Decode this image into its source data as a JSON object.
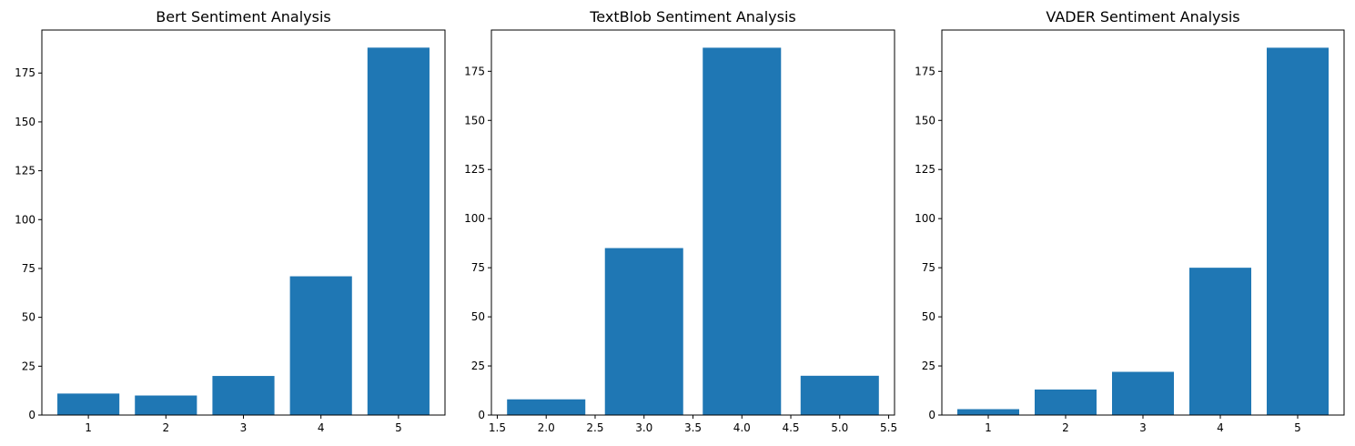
{
  "colors": {
    "bar": "#1f77b4",
    "axes": "#000000",
    "background": "#ffffff"
  },
  "chart_data": [
    {
      "type": "bar",
      "title": "Bert Sentiment Analysis",
      "xlabel": "",
      "ylabel": "",
      "x": [
        1,
        2,
        3,
        4,
        5
      ],
      "values": [
        11,
        10,
        20,
        71,
        188
      ],
      "bar_width": 0.8,
      "xlim": [
        0.4,
        5.6
      ],
      "ylim": [
        0,
        197
      ],
      "xticks": [
        1,
        2,
        3,
        4,
        5
      ],
      "xtick_labels": [
        "1",
        "2",
        "3",
        "4",
        "5"
      ],
      "yticks": [
        0,
        25,
        50,
        75,
        100,
        125,
        150,
        175
      ],
      "ytick_labels": [
        "0",
        "25",
        "50",
        "75",
        "100",
        "125",
        "150",
        "175"
      ],
      "grid": false,
      "legend": "none"
    },
    {
      "type": "bar",
      "title": "TextBlob Sentiment Analysis",
      "xlabel": "",
      "ylabel": "",
      "x": [
        2.0,
        3.0,
        4.0,
        5.0
      ],
      "values": [
        8,
        85,
        187,
        20
      ],
      "bar_width": 0.8,
      "xlim": [
        1.44,
        5.56
      ],
      "ylim": [
        0,
        196
      ],
      "xticks": [
        1.5,
        2.0,
        2.5,
        3.0,
        3.5,
        4.0,
        4.5,
        5.0,
        5.5
      ],
      "xtick_labels": [
        "1.5",
        "2.0",
        "2.5",
        "3.0",
        "3.5",
        "4.0",
        "4.5",
        "5.0",
        "5.5"
      ],
      "yticks": [
        0,
        25,
        50,
        75,
        100,
        125,
        150,
        175
      ],
      "ytick_labels": [
        "0",
        "25",
        "50",
        "75",
        "100",
        "125",
        "150",
        "175"
      ],
      "grid": false,
      "legend": "none"
    },
    {
      "type": "bar",
      "title": "VADER Sentiment Analysis",
      "xlabel": "",
      "ylabel": "",
      "x": [
        1,
        2,
        3,
        4,
        5
      ],
      "values": [
        3,
        13,
        22,
        75,
        187
      ],
      "bar_width": 0.8,
      "xlim": [
        0.4,
        5.6
      ],
      "ylim": [
        0,
        196
      ],
      "xticks": [
        1,
        2,
        3,
        4,
        5
      ],
      "xtick_labels": [
        "1",
        "2",
        "3",
        "4",
        "5"
      ],
      "yticks": [
        0,
        25,
        50,
        75,
        100,
        125,
        150,
        175
      ],
      "ytick_labels": [
        "0",
        "25",
        "50",
        "75",
        "100",
        "125",
        "150",
        "175"
      ],
      "grid": false,
      "legend": "none"
    }
  ]
}
